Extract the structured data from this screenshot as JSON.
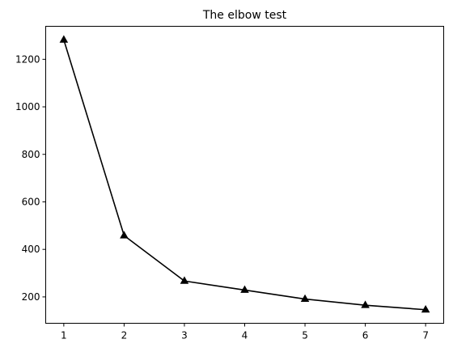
{
  "chart_data": {
    "type": "line",
    "title": "The elbow test",
    "xlabel": "",
    "ylabel": "",
    "x": [
      1,
      2,
      3,
      4,
      5,
      6,
      7
    ],
    "series": [
      {
        "values": [
          1282,
          458,
          267,
          229,
          191,
          165,
          146
        ],
        "color": "#000000",
        "marker": "triangle-up"
      }
    ],
    "x_ticks": [
      "1",
      "2",
      "3",
      "4",
      "5",
      "6",
      "7"
    ],
    "y_ticks": [
      "200",
      "400",
      "600",
      "800",
      "1000",
      "1200"
    ],
    "xlim": [
      0.7,
      7.3
    ],
    "ylim": [
      89,
      1339
    ],
    "grid": false,
    "legend": "none"
  }
}
